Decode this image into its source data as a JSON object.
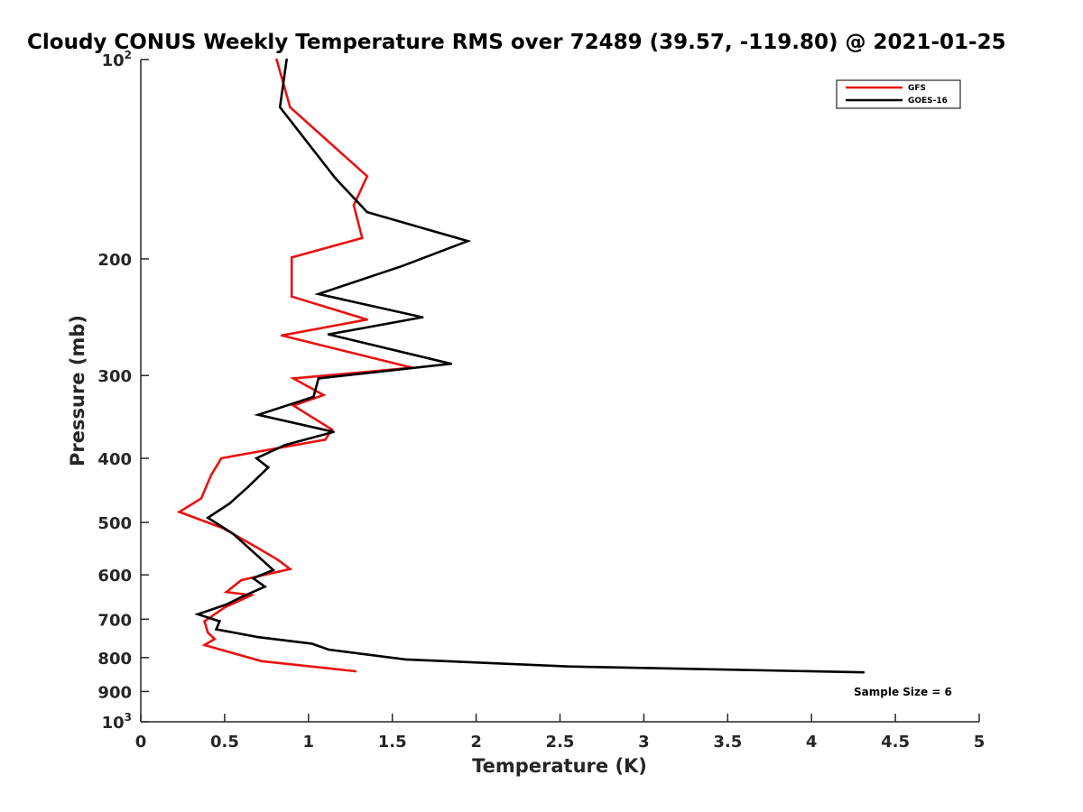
{
  "chart_data": {
    "type": "line",
    "title": "Cloudy CONUS Weekly Temperature RMS over 72489 (39.57, -119.80) @ 2021-01-25",
    "xlabel": "Temperature (K)",
    "ylabel": "Pressure (mb)",
    "xlim": [
      0,
      5
    ],
    "ylim": [
      100,
      1000
    ],
    "y_scale": "log",
    "y_reversed": true,
    "grid": false,
    "legend_position": "top-right",
    "x_ticks": [
      "0",
      "0.5",
      "1",
      "1.5",
      "2",
      "2.5",
      "3",
      "3.5",
      "4",
      "4.5",
      "5"
    ],
    "y_ticks": [
      {
        "value": 100,
        "base": "10",
        "exp": "2"
      },
      {
        "value": 200,
        "label": "200"
      },
      {
        "value": 300,
        "label": "300"
      },
      {
        "value": 400,
        "label": "400"
      },
      {
        "value": 500,
        "label": "500"
      },
      {
        "value": 600,
        "label": "600"
      },
      {
        "value": 700,
        "label": "700"
      },
      {
        "value": 800,
        "label": "800"
      },
      {
        "value": 900,
        "label": "900"
      },
      {
        "value": 1000,
        "base": "10",
        "exp": "3"
      }
    ],
    "annotation": "Sample Size = 6",
    "series": [
      {
        "name": "GFS",
        "color": "#e8120f",
        "x": [
          0.81,
          0.89,
          1.35,
          1.27,
          1.32,
          0.9,
          0.9,
          1.35,
          0.84,
          1.62,
          0.91,
          1.09,
          0.91,
          1.14,
          1.1,
          0.48,
          0.42,
          0.36,
          0.23,
          0.49,
          0.69,
          0.82,
          0.89,
          0.6,
          0.51,
          0.66,
          0.5,
          0.38,
          0.4,
          0.44,
          0.38,
          0.72,
          1.28
        ],
        "y": [
          100,
          118,
          150,
          166,
          186,
          199,
          228,
          247,
          261,
          292,
          303,
          321,
          333,
          362,
          375,
          400,
          424,
          460,
          482,
          510,
          545,
          570,
          588,
          611,
          637,
          644,
          672,
          705,
          733,
          750,
          766,
          810,
          839
        ]
      },
      {
        "name": "GOES-16",
        "color": "#000000",
        "x": [
          0.87,
          0.83,
          1.16,
          1.35,
          1.95,
          1.56,
          1.06,
          1.68,
          1.12,
          1.85,
          1.06,
          1.03,
          0.7,
          1.15,
          0.86,
          0.69,
          0.76,
          0.64,
          0.53,
          0.4,
          0.55,
          0.79,
          0.67,
          0.74,
          0.59,
          0.51,
          0.34,
          0.47,
          0.45,
          0.7,
          1.02,
          1.12,
          1.58,
          2.55,
          4.31
        ],
        "y": [
          100,
          118,
          151,
          170,
          188,
          205,
          226,
          245,
          260,
          288,
          303,
          323,
          344,
          365,
          382,
          400,
          413,
          442,
          468,
          492,
          520,
          590,
          607,
          625,
          650,
          665,
          688,
          705,
          725,
          745,
          762,
          778,
          805,
          825,
          842
        ]
      }
    ]
  }
}
